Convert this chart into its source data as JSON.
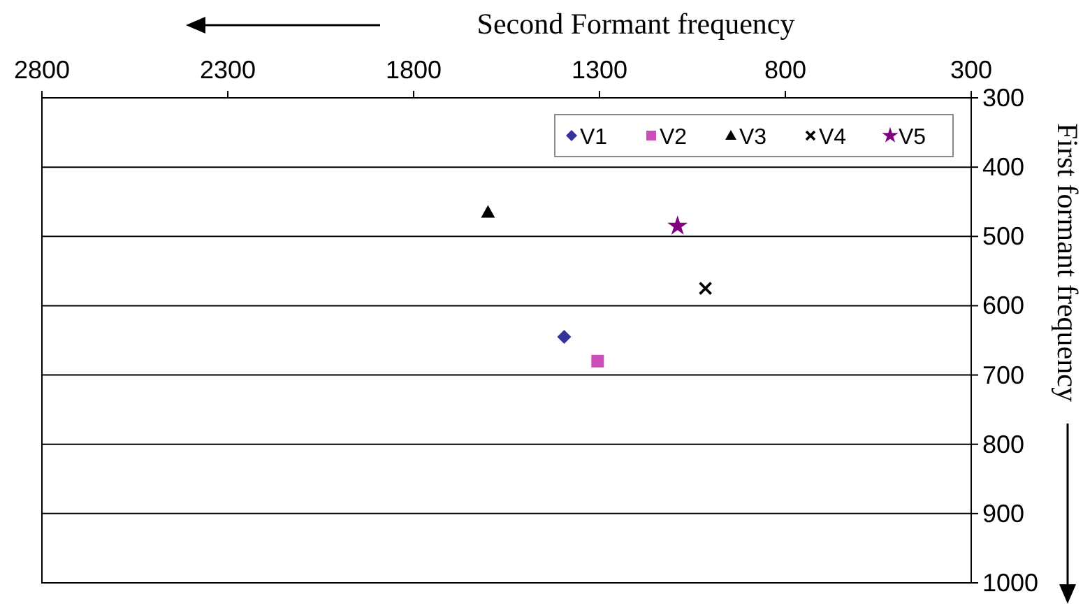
{
  "chart_data": {
    "type": "scatter",
    "xlabel": "Second Formant frequency",
    "ylabel": "First formant frequency",
    "xlim": [
      2800,
      300
    ],
    "xticks": [
      2800,
      2300,
      1800,
      1300,
      800,
      300
    ],
    "ylim": [
      1000,
      300
    ],
    "yticks": [
      300,
      400,
      500,
      600,
      700,
      800,
      900,
      1000
    ],
    "grid": "y",
    "legend": "top right",
    "series": [
      {
        "name": "V1",
        "color": "#333399",
        "marker": "diamond",
        "x": [
          1395
        ],
        "values": [
          645
        ]
      },
      {
        "name": "V2",
        "color": "#cc4fb8",
        "marker": "square",
        "x": [
          1305
        ],
        "values": [
          680
        ]
      },
      {
        "name": "V3",
        "color": "#000000",
        "marker": "triangle",
        "x": [
          1600
        ],
        "values": [
          465
        ]
      },
      {
        "name": "V4",
        "color": "#000000",
        "marker": "cross",
        "x": [
          1015
        ],
        "values": [
          575
        ]
      },
      {
        "name": "V5",
        "color": "#800080",
        "marker": "star",
        "x": [
          1090
        ],
        "values": [
          485
        ]
      }
    ]
  }
}
